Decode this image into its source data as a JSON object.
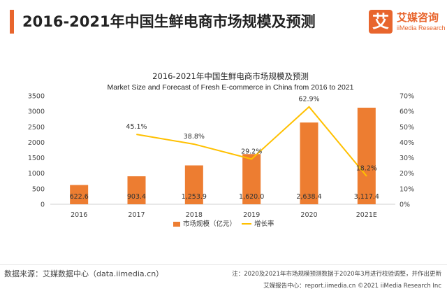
{
  "header": {
    "title": "2016-2021年中国生鲜电商市场规模及预测"
  },
  "logo": {
    "mark": "艾",
    "name_cn": "艾媒咨询",
    "name_en": "iiMedia Research"
  },
  "chart_data": {
    "type": "bar",
    "title": "2016-2021年中国生鲜电商市场规模及预测",
    "subtitle": "Market Size and Forecast of Fresh E-commerce in China from 2016 to 2021",
    "categories": [
      "2016",
      "2017",
      "2018",
      "2019",
      "2020",
      "2021E"
    ],
    "series": [
      {
        "name": "市场规模（亿元）",
        "type": "bar",
        "axis": "left",
        "values": [
          622.6,
          903.4,
          1253.9,
          1620.0,
          2638.4,
          3117.4
        ],
        "labels": [
          "622.6",
          "903.4",
          "1,253.9",
          "1,620.0",
          "2,638.4",
          "3,117.4"
        ],
        "color": "#ed7d31"
      },
      {
        "name": "增长率",
        "type": "line",
        "axis": "right",
        "values": [
          null,
          45.1,
          38.8,
          29.2,
          62.9,
          18.2
        ],
        "labels": [
          "",
          "45.1%",
          "38.8%",
          "29.2%",
          "62.9%",
          "18.2%"
        ],
        "color": "#ffc000"
      }
    ],
    "y_left": {
      "ylim": [
        0,
        3500
      ],
      "ticks": [
        "0",
        "500",
        "1000",
        "1500",
        "2000",
        "2500",
        "3000",
        "3500"
      ]
    },
    "y_right": {
      "ylim": [
        0,
        70
      ],
      "ticks": [
        "0%",
        "10%",
        "20%",
        "30%",
        "40%",
        "50%",
        "60%",
        "70%"
      ]
    },
    "legend": {
      "placement": "bottom"
    },
    "grid": false
  },
  "footer": {
    "source": "数据来源：艾媒数据中心（data.iimedia.cn）",
    "note": "注：2020及2021年市场规模预测数据于2020年3月进行校验调整，并作出更新",
    "credit": "艾媒报告中心：report.iimedia.cn  ©2021  iiMedia Research  Inc"
  }
}
